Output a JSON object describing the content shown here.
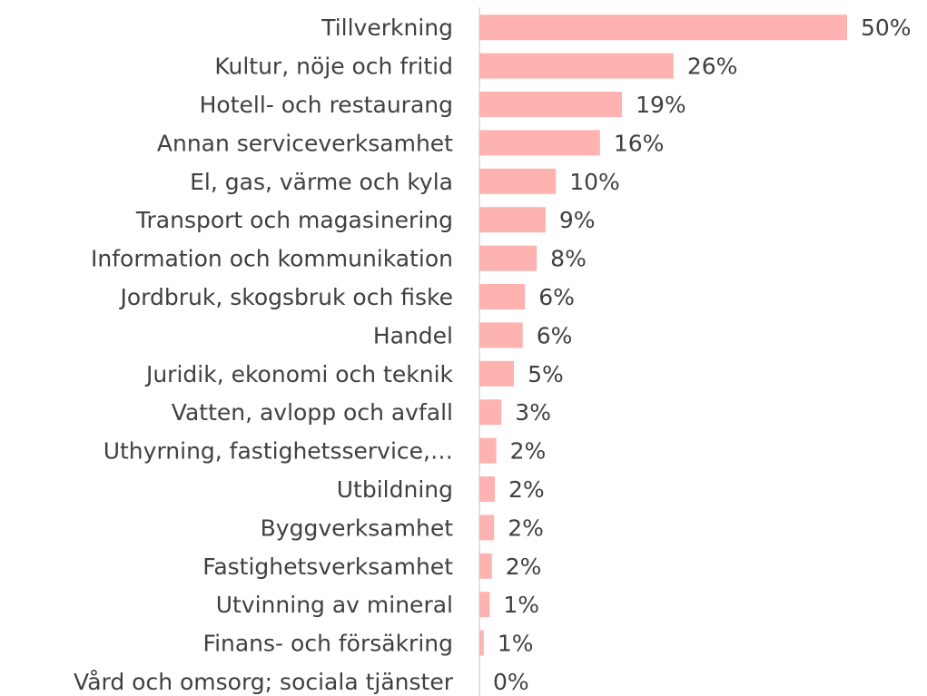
{
  "chart_data": {
    "type": "hbar",
    "categories": [
      "Tillverkning",
      "Kultur, nöje och fritid",
      "Hotell- och restaurang",
      "Annan serviceverksamhet",
      "El, gas, värme och kyla",
      "Transport och magasinering",
      "Information och kommunikation",
      "Jordbruk, skogsbruk och fiske",
      "Handel",
      "Juridik, ekonomi och teknik",
      "Vatten, avlopp och avfall",
      "Uthyrning, fastighetsservice,…",
      "Utbildning",
      "Byggverksamhet",
      "Fastighetsverksamhet",
      "Utvinning av mineral",
      "Finans- och försäkring",
      "Vård och omsorg; sociala tjänster"
    ],
    "values": [
      50,
      26.4,
      19.4,
      16.4,
      10.4,
      9.0,
      7.8,
      6.2,
      5.9,
      4.7,
      3.0,
      2.3,
      2.1,
      2.0,
      1.7,
      1.4,
      0.6,
      0
    ],
    "value_labels": [
      "50%",
      "26%",
      "19%",
      "16%",
      "10%",
      "9%",
      "8%",
      "6%",
      "6%",
      "5%",
      "3%",
      "2%",
      "2%",
      "2%",
      "2%",
      "1%",
      "1%",
      "0%"
    ],
    "color": "#ffb3b0",
    "xlim": [
      0,
      50
    ]
  }
}
